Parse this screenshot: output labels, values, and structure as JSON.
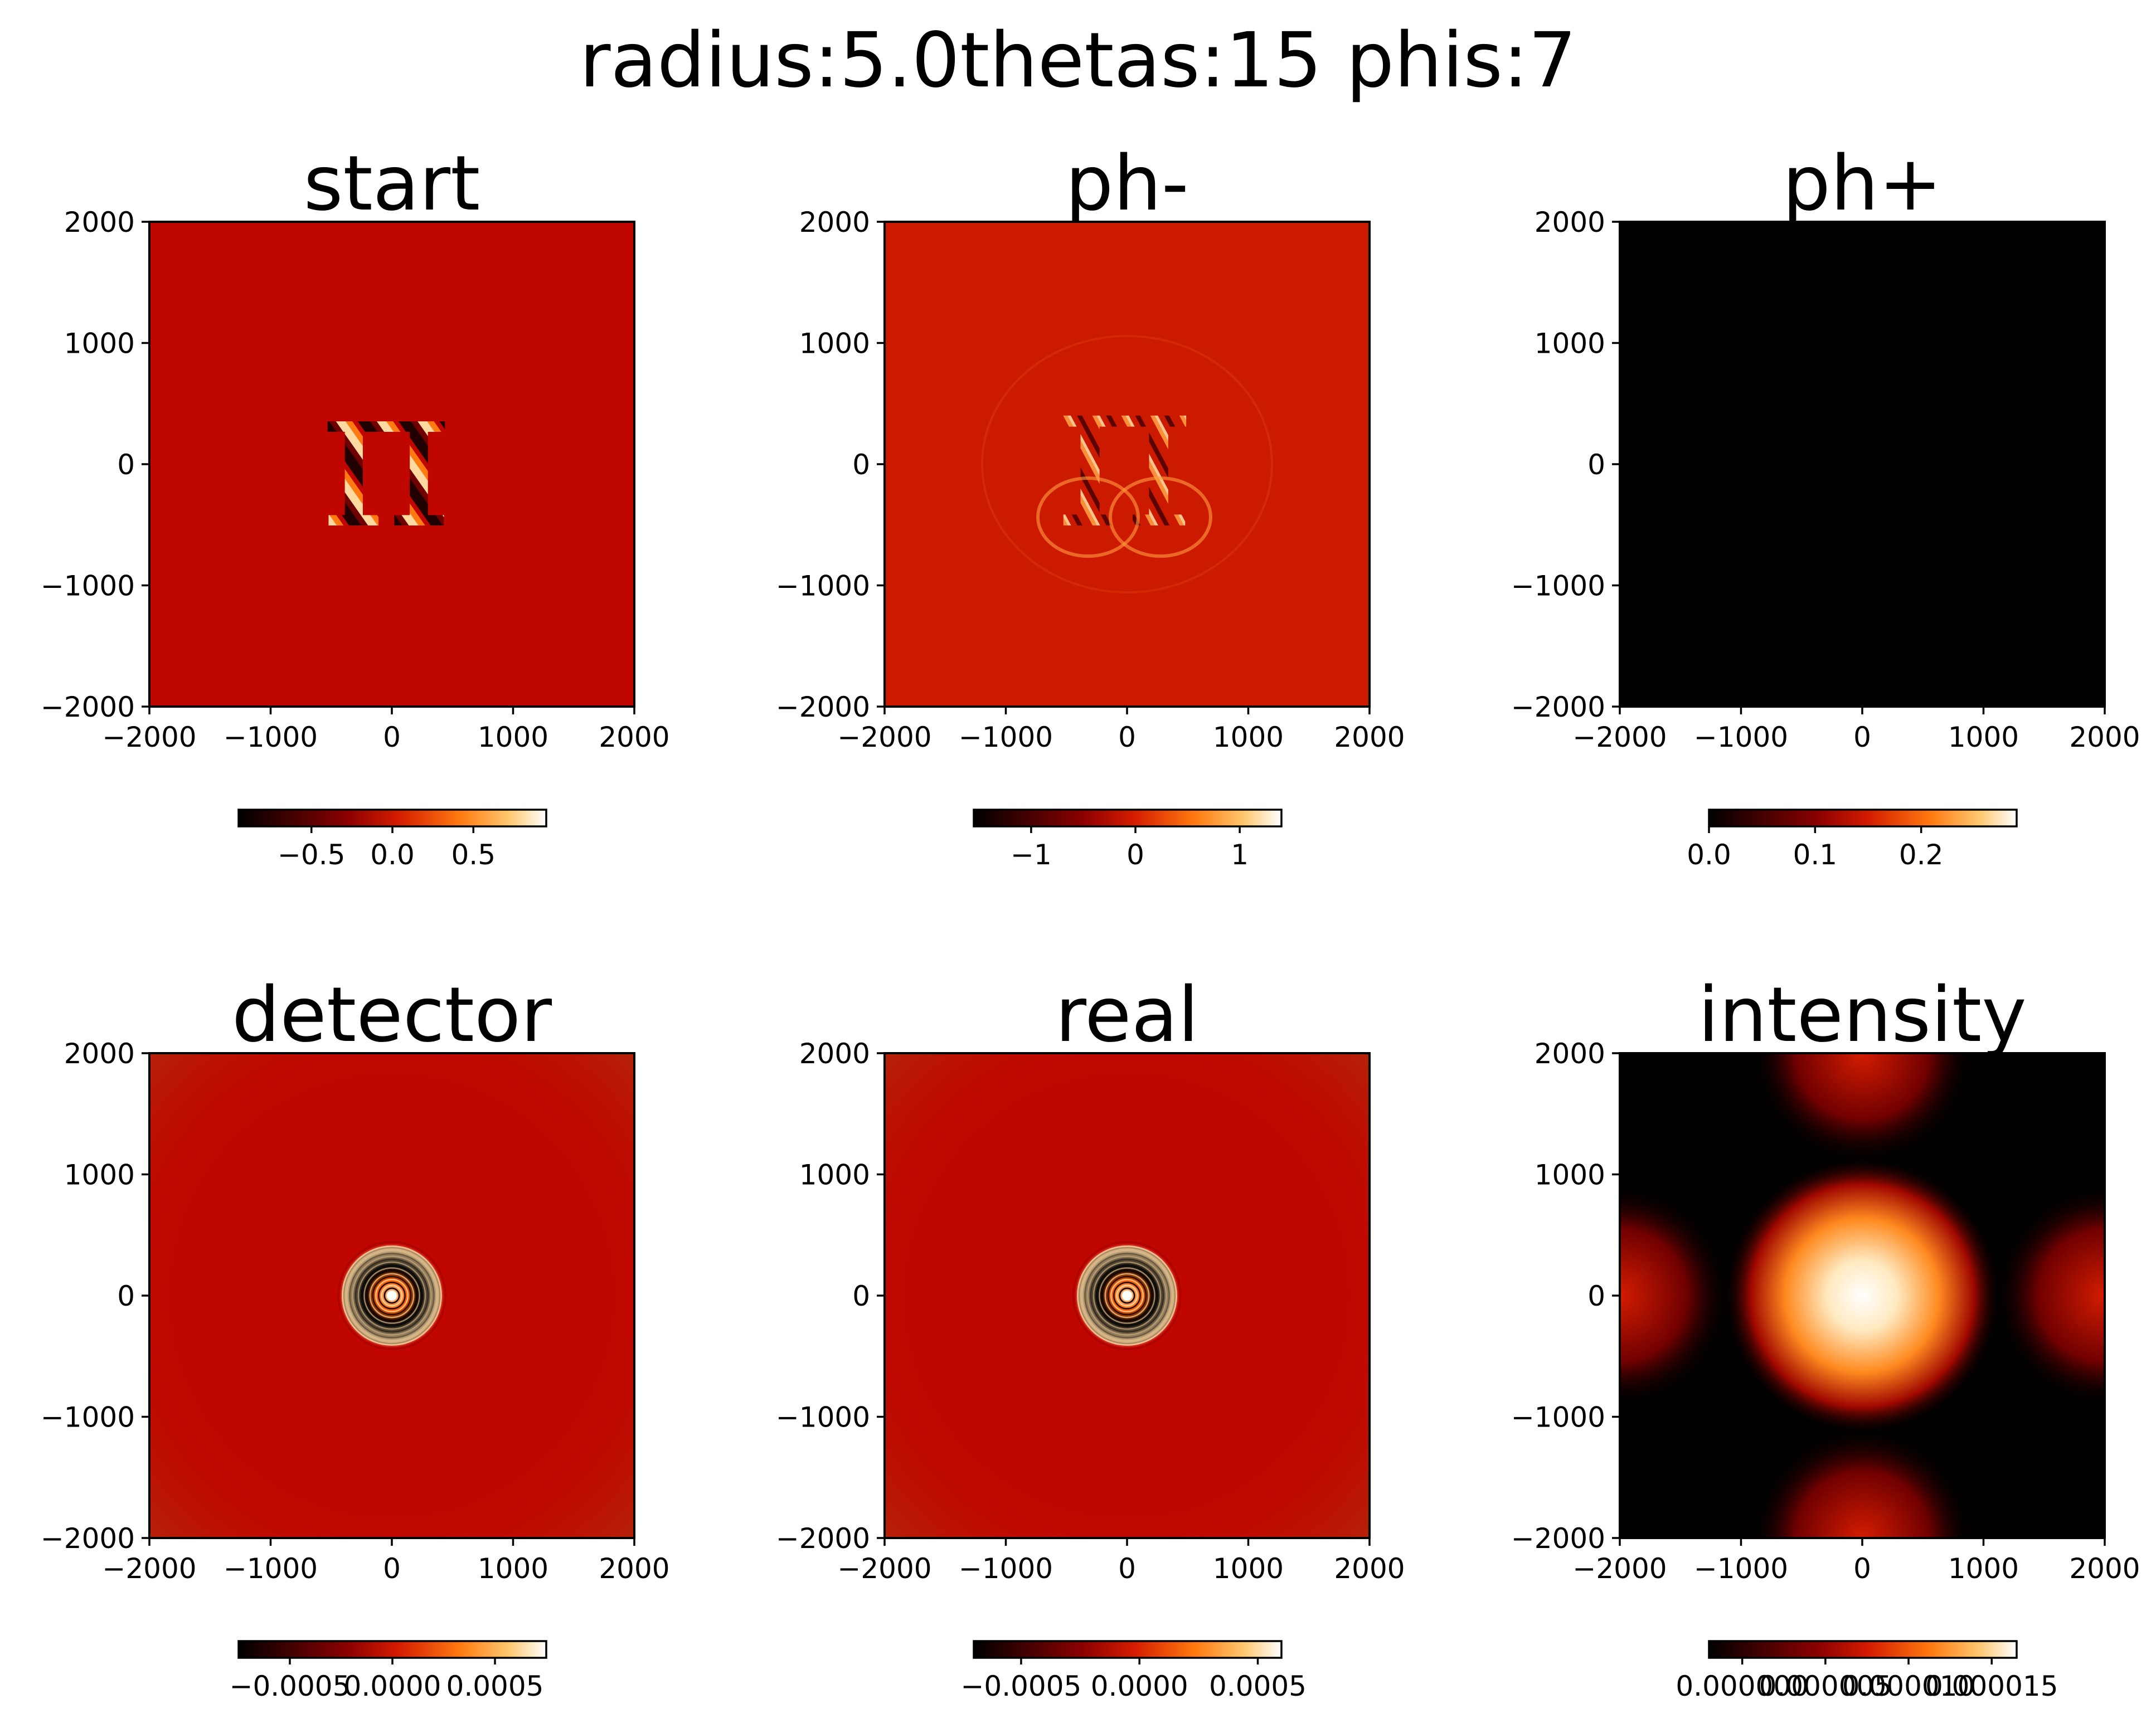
{
  "figure_title": "radius:5.0thetas:15 phis:7",
  "chart_data": [
    {
      "type": "heatmap",
      "title": "start",
      "xlim": [
        -2000,
        2000
      ],
      "ylim": [
        -2000,
        2000
      ],
      "xticks": [
        -2000,
        -1000,
        0,
        1000,
        2000
      ],
      "yticks": [
        -2000,
        -1000,
        0,
        1000,
        2000
      ],
      "xtick_labels": [
        "−2000",
        "−1000",
        "0",
        "1000",
        "2000"
      ],
      "ytick_labels": [
        "2000",
        "1000",
        "0",
        "−1000",
        "−2000"
      ],
      "colormap": "gist_heat",
      "background": "#c00600",
      "pattern": "pi symbol filled with diagonal stripes",
      "colorbar": {
        "orientation": "horizontal",
        "range": [
          -0.95,
          0.95
        ],
        "ticks": [
          -0.5,
          0.0,
          0.5
        ],
        "tick_labels": [
          "−0.5",
          "0.0",
          "0.5"
        ]
      }
    },
    {
      "type": "heatmap",
      "title": "ph-",
      "xlim": [
        -2000,
        2000
      ],
      "ylim": [
        -2000,
        2000
      ],
      "xticks": [
        -2000,
        -1000,
        0,
        1000,
        2000
      ],
      "yticks": [
        -2000,
        -1000,
        0,
        1000,
        2000
      ],
      "xtick_labels": [
        "−2000",
        "−1000",
        "0",
        "1000",
        "2000"
      ],
      "ytick_labels": [
        "2000",
        "1000",
        "0",
        "−1000",
        "−2000"
      ],
      "colormap": "gist_heat",
      "background": "#cc1a00",
      "pattern": "diffracted pi interference fringes",
      "colorbar": {
        "orientation": "horizontal",
        "range": [
          -1.55,
          1.4
        ],
        "ticks": [
          -1,
          0,
          1
        ],
        "tick_labels": [
          "−1",
          "0",
          "1"
        ]
      }
    },
    {
      "type": "heatmap",
      "title": "ph+",
      "xlim": [
        -2000,
        2000
      ],
      "ylim": [
        -2000,
        2000
      ],
      "xticks": [
        -2000,
        -1000,
        0,
        1000,
        2000
      ],
      "yticks": [
        -2000,
        -1000,
        0,
        1000,
        2000
      ],
      "xtick_labels": [
        "−2000",
        "−1000",
        "0",
        "1000",
        "2000"
      ],
      "ytick_labels": [
        "2000",
        "1000",
        "0",
        "−1000",
        "−2000"
      ],
      "colormap": "gist_heat",
      "background": "#000000",
      "pattern": "uniform near zero",
      "colorbar": {
        "orientation": "horizontal",
        "range": [
          0.0,
          0.29
        ],
        "ticks": [
          0.0,
          0.1,
          0.2
        ],
        "tick_labels": [
          "0.0",
          "0.1",
          "0.2"
        ]
      }
    },
    {
      "type": "heatmap",
      "title": "detector",
      "xlim": [
        -2000,
        2000
      ],
      "ylim": [
        -2000,
        2000
      ],
      "xticks": [
        -2000,
        -1000,
        0,
        1000,
        2000
      ],
      "yticks": [
        -2000,
        -1000,
        0,
        1000,
        2000
      ],
      "xtick_labels": [
        "−2000",
        "−1000",
        "0",
        "1000",
        "2000"
      ],
      "ytick_labels": [
        "2000",
        "1000",
        "0",
        "−1000",
        "−2000"
      ],
      "colormap": "gist_heat",
      "background": "#c00600",
      "pattern": "concentric rings centered at origin",
      "colorbar": {
        "orientation": "horizontal",
        "range": [
          -0.00075,
          0.00075
        ],
        "ticks": [
          -0.0005,
          0.0,
          0.0005
        ],
        "tick_labels": [
          "−0.0005",
          "0.0000",
          "0.0005"
        ]
      }
    },
    {
      "type": "heatmap",
      "title": "real",
      "xlim": [
        -2000,
        2000
      ],
      "ylim": [
        -2000,
        2000
      ],
      "xticks": [
        -2000,
        -1000,
        0,
        1000,
        2000
      ],
      "yticks": [
        -2000,
        -1000,
        0,
        1000,
        2000
      ],
      "xtick_labels": [
        "−2000",
        "−1000",
        "0",
        "1000",
        "2000"
      ],
      "ytick_labels": [
        "2000",
        "1000",
        "0",
        "−1000",
        "−2000"
      ],
      "colormap": "gist_heat",
      "background": "#c00600",
      "pattern": "concentric rings centered at origin",
      "colorbar": {
        "orientation": "horizontal",
        "range": [
          -0.0007,
          0.0006
        ],
        "ticks": [
          -0.0005,
          0.0,
          0.0005
        ],
        "tick_labels": [
          "−0.0005",
          "0.0000",
          "0.0005"
        ]
      }
    },
    {
      "type": "heatmap",
      "title": "intensity",
      "xlim": [
        -2000,
        2000
      ],
      "ylim": [
        -2000,
        2000
      ],
      "xticks": [
        -2000,
        -1000,
        0,
        1000,
        2000
      ],
      "yticks": [
        -2000,
        -1000,
        0,
        1000,
        2000
      ],
      "xtick_labels": [
        "−2000",
        "−1000",
        "0",
        "1000",
        "2000"
      ],
      "ytick_labels": [
        "2000",
        "1000",
        "0",
        "−1000",
        "−2000"
      ],
      "colormap": "gist_heat",
      "background": "#000000",
      "pattern": "bright spot at origin with periodic lobes at edges",
      "colorbar": {
        "orientation": "horizontal",
        "range": [
          -2e-06,
          1.65e-05
        ],
        "ticks": [
          0.0,
          5e-06,
          1e-05,
          1.5e-05
        ],
        "tick_labels": [
          "0.000000",
          "0.000005",
          "0.000010",
          "0.000015"
        ]
      }
    }
  ]
}
